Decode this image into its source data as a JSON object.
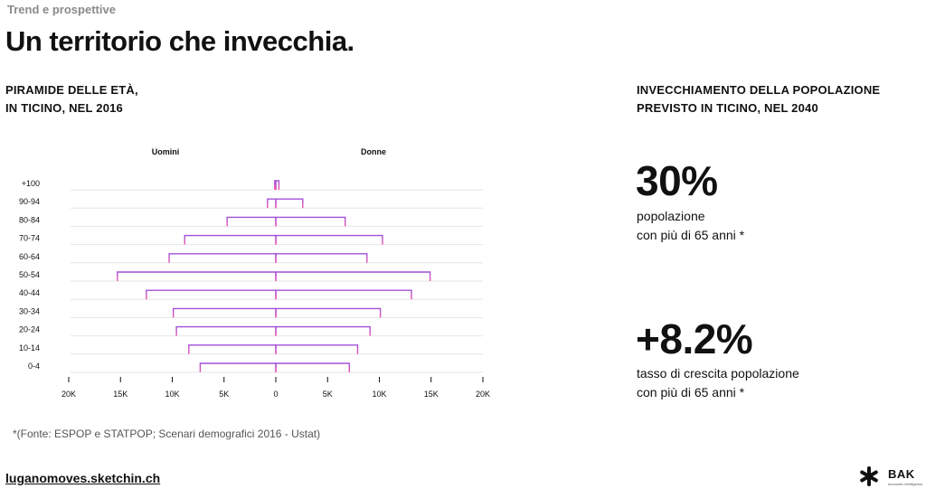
{
  "header": {
    "eyebrow": "Trend e prospettive",
    "title": "Un territorio che invecchia."
  },
  "left_heading": {
    "line1": "PIRAMIDE DELLE ETÀ,",
    "line2": "IN TICINO, NEL 2016"
  },
  "right_heading": {
    "line1": "INVECCHIAMENTO DELLA POPOLAZIONE",
    "line2": "PREVISTO IN TICINO, NEL 2040"
  },
  "stats": [
    {
      "value": "30%",
      "line1": "popolazione",
      "line2": "con più di 65 anni *"
    },
    {
      "value": "+8.2%",
      "line1": "tasso di crescita popolazione",
      "line2": "con più di 65 anni *"
    }
  ],
  "footer": {
    "source": "*(Fonte: ESPOP e STATPOP; Scenari demografici 2016 - Ustat)",
    "site": "luganomoves.sketchin.ch",
    "logo_text": "BAK",
    "logo_sub": "economic intelligence"
  },
  "colors": {
    "bar_start": "#a050d8",
    "bar_end": "#f050b0",
    "grid": "#e6e6e6",
    "axis": "#111111"
  },
  "chart_data": {
    "type": "bar",
    "orientation": "horizontal-diverging",
    "title": "PIRAMIDE DELLE ETÀ, IN TICINO, NEL 2016",
    "categories": [
      "+100",
      "90-94",
      "80-84",
      "70-74",
      "60-64",
      "50-54",
      "40-44",
      "30-34",
      "20-24",
      "10-14",
      "0-4"
    ],
    "series": [
      {
        "name": "Uomini",
        "values": [
          100,
          800,
          4700,
          8800,
          10300,
          15300,
          12500,
          9900,
          9600,
          8400,
          7300
        ]
      },
      {
        "name": "Donne",
        "values": [
          300,
          2600,
          6700,
          10300,
          8800,
          14900,
          13100,
          10100,
          9100,
          7900,
          7100
        ]
      }
    ],
    "xlim": [
      -20000,
      20000
    ],
    "xticks": [
      {
        "value": -20000,
        "label": "20K"
      },
      {
        "value": -15000,
        "label": "15K"
      },
      {
        "value": -10000,
        "label": "10K"
      },
      {
        "value": -5000,
        "label": "5K"
      },
      {
        "value": 0,
        "label": "0"
      },
      {
        "value": 5000,
        "label": "5K"
      },
      {
        "value": 10000,
        "label": "10K"
      },
      {
        "value": 15000,
        "label": "15K"
      },
      {
        "value": 20000,
        "label": "20K"
      }
    ],
    "grid": true
  }
}
